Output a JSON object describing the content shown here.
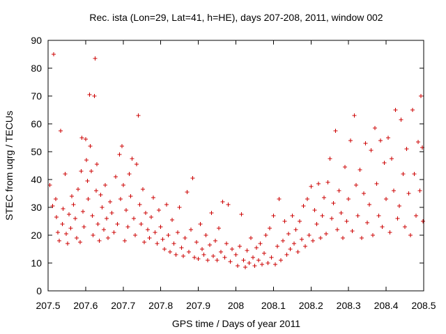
{
  "chart_data": {
    "type": "scatter",
    "title": "Rec. ista (Lon=29, Lat=41, h=HE), days 207-208, 2011, window 002",
    "xlabel": "GPS time / Days of year 2011",
    "ylabel": "STEC from uqrg / TECUs",
    "xlim": [
      207.5,
      208.5
    ],
    "ylim": [
      0,
      90
    ],
    "x_ticks": [
      "207.5",
      "207.6",
      "207.7",
      "207.8",
      "207.9",
      "208",
      "208.1",
      "208.2",
      "208.3",
      "208.4",
      "208.5"
    ],
    "y_ticks": [
      "0",
      "10",
      "20",
      "30",
      "40",
      "50",
      "60",
      "70",
      "80",
      "90"
    ],
    "grid": false,
    "marker": "plus",
    "color": "#cc0000",
    "series": [
      {
        "values": [
          [
            207.505,
            38.0
          ],
          [
            207.512,
            30.5
          ],
          [
            207.515,
            85.0
          ],
          [
            207.52,
            33.0
          ],
          [
            207.522,
            26.5
          ],
          [
            207.526,
            21.0
          ],
          [
            207.53,
            18.0
          ],
          [
            207.533,
            57.5
          ],
          [
            207.538,
            24.0
          ],
          [
            207.54,
            29.5
          ],
          [
            207.545,
            42.0
          ],
          [
            207.548,
            20.5
          ],
          [
            207.552,
            17.0
          ],
          [
            207.556,
            27.5
          ],
          [
            207.56,
            22.5
          ],
          [
            207.563,
            34.0
          ],
          [
            207.568,
            31.0
          ],
          [
            207.572,
            26.0
          ],
          [
            207.576,
            19.0
          ],
          [
            207.58,
            36.5
          ],
          [
            207.585,
            17.5
          ],
          [
            207.588,
            43.0
          ],
          [
            207.59,
            55.0
          ],
          [
            207.593,
            28.5
          ],
          [
            207.596,
            23.0
          ],
          [
            207.6,
            54.5
          ],
          [
            207.602,
            47.0
          ],
          [
            207.605,
            39.5
          ],
          [
            207.607,
            33.0
          ],
          [
            207.61,
            70.5
          ],
          [
            207.612,
            52.0
          ],
          [
            207.615,
            43.0
          ],
          [
            207.618,
            27.0
          ],
          [
            207.62,
            20.0
          ],
          [
            207.623,
            70.0
          ],
          [
            207.625,
            83.5
          ],
          [
            207.628,
            36.0
          ],
          [
            207.63,
            45.5
          ],
          [
            207.633,
            24.0
          ],
          [
            207.636,
            18.0
          ],
          [
            207.64,
            34.5
          ],
          [
            207.644,
            30.0
          ],
          [
            207.648,
            22.0
          ],
          [
            207.652,
            38.0
          ],
          [
            207.656,
            26.0
          ],
          [
            207.66,
            19.0
          ],
          [
            207.665,
            32.0
          ],
          [
            207.67,
            28.0
          ],
          [
            207.675,
            21.0
          ],
          [
            207.68,
            41.0
          ],
          [
            207.685,
            24.0
          ],
          [
            207.69,
            49.0
          ],
          [
            207.693,
            33.0
          ],
          [
            207.697,
            52.0
          ],
          [
            207.7,
            38.0
          ],
          [
            207.704,
            18.0
          ],
          [
            207.708,
            29.0
          ],
          [
            207.712,
            23.0
          ],
          [
            207.716,
            42.0
          ],
          [
            207.72,
            34.0
          ],
          [
            207.724,
            47.5
          ],
          [
            207.728,
            26.0
          ],
          [
            207.732,
            20.0
          ],
          [
            207.736,
            45.5
          ],
          [
            207.74,
            63.0
          ],
          [
            207.744,
            31.0
          ],
          [
            207.748,
            24.0
          ],
          [
            207.752,
            36.5
          ],
          [
            207.756,
            17.5
          ],
          [
            207.76,
            28.0
          ],
          [
            207.765,
            22.0
          ],
          [
            207.77,
            19.0
          ],
          [
            207.775,
            26.5
          ],
          [
            207.78,
            33.5
          ],
          [
            207.785,
            21.0
          ],
          [
            207.79,
            17.0
          ],
          [
            207.795,
            29.0
          ],
          [
            207.8,
            23.0
          ],
          [
            207.805,
            18.5
          ],
          [
            207.81,
            15.0
          ],
          [
            207.815,
            31.0
          ],
          [
            207.82,
            20.0
          ],
          [
            207.825,
            14.0
          ],
          [
            207.83,
            25.5
          ],
          [
            207.835,
            17.0
          ],
          [
            207.84,
            13.0
          ],
          [
            207.845,
            21.0
          ],
          [
            207.85,
            30.0
          ],
          [
            207.855,
            15.5
          ],
          [
            207.86,
            12.5
          ],
          [
            207.865,
            19.0
          ],
          [
            207.87,
            35.5
          ],
          [
            207.875,
            14.0
          ],
          [
            207.88,
            22.0
          ],
          [
            207.885,
            40.5
          ],
          [
            207.89,
            12.0
          ],
          [
            207.895,
            17.5
          ],
          [
            207.9,
            11.5
          ],
          [
            207.905,
            24.0
          ],
          [
            207.91,
            15.0
          ],
          [
            207.915,
            13.0
          ],
          [
            207.92,
            20.0
          ],
          [
            207.925,
            11.0
          ],
          [
            207.93,
            16.5
          ],
          [
            207.935,
            28.0
          ],
          [
            207.94,
            12.5
          ],
          [
            207.945,
            18.0
          ],
          [
            207.95,
            11.0
          ],
          [
            207.955,
            22.5
          ],
          [
            207.96,
            14.0
          ],
          [
            207.965,
            32.0
          ],
          [
            207.97,
            12.0
          ],
          [
            207.975,
            17.0
          ],
          [
            207.98,
            31.0
          ],
          [
            207.985,
            10.5
          ],
          [
            207.99,
            15.0
          ],
          [
            208.0,
            13.0
          ],
          [
            208.005,
            9.0
          ],
          [
            208.01,
            16.0
          ],
          [
            208.015,
            27.5
          ],
          [
            208.02,
            11.0
          ],
          [
            208.025,
            8.5
          ],
          [
            208.03,
            14.5
          ],
          [
            208.035,
            10.0
          ],
          [
            208.04,
            19.0
          ],
          [
            208.045,
            12.0
          ],
          [
            208.05,
            9.0
          ],
          [
            208.055,
            15.5
          ],
          [
            208.06,
            11.0
          ],
          [
            208.065,
            17.0
          ],
          [
            208.07,
            9.5
          ],
          [
            208.075,
            13.5
          ],
          [
            208.08,
            20.0
          ],
          [
            208.085,
            10.0
          ],
          [
            208.09,
            22.5
          ],
          [
            208.095,
            12.0
          ],
          [
            208.1,
            27.0
          ],
          [
            208.105,
            9.5
          ],
          [
            208.11,
            16.0
          ],
          [
            208.115,
            33.0
          ],
          [
            208.12,
            11.0
          ],
          [
            208.125,
            18.0
          ],
          [
            208.13,
            25.0
          ],
          [
            208.135,
            13.0
          ],
          [
            208.14,
            20.5
          ],
          [
            208.145,
            15.0
          ],
          [
            208.15,
            27.0
          ],
          [
            208.155,
            17.0
          ],
          [
            208.16,
            22.0
          ],
          [
            208.165,
            14.0
          ],
          [
            208.17,
            25.0
          ],
          [
            208.175,
            18.5
          ],
          [
            208.18,
            30.5
          ],
          [
            208.185,
            16.0
          ],
          [
            208.19,
            33.0
          ],
          [
            208.195,
            20.0
          ],
          [
            208.2,
            37.5
          ],
          [
            208.205,
            18.0
          ],
          [
            208.21,
            29.0
          ],
          [
            208.215,
            24.0
          ],
          [
            208.22,
            38.5
          ],
          [
            208.225,
            19.0
          ],
          [
            208.23,
            27.0
          ],
          [
            208.235,
            33.5
          ],
          [
            208.24,
            20.5
          ],
          [
            208.245,
            39.0
          ],
          [
            208.25,
            47.5
          ],
          [
            208.255,
            26.0
          ],
          [
            208.26,
            31.5
          ],
          [
            208.265,
            57.5
          ],
          [
            208.27,
            22.0
          ],
          [
            208.275,
            36.0
          ],
          [
            208.28,
            28.0
          ],
          [
            208.285,
            19.0
          ],
          [
            208.29,
            44.5
          ],
          [
            208.295,
            25.0
          ],
          [
            208.3,
            33.0
          ],
          [
            208.305,
            54.0
          ],
          [
            208.31,
            21.5
          ],
          [
            208.315,
            63.0
          ],
          [
            208.32,
            38.0
          ],
          [
            208.325,
            27.0
          ],
          [
            208.33,
            43.5
          ],
          [
            208.335,
            19.0
          ],
          [
            208.34,
            35.0
          ],
          [
            208.345,
            53.0
          ],
          [
            208.35,
            24.5
          ],
          [
            208.355,
            31.0
          ],
          [
            208.36,
            50.5
          ],
          [
            208.365,
            20.0
          ],
          [
            208.37,
            58.5
          ],
          [
            208.375,
            38.5
          ],
          [
            208.38,
            27.0
          ],
          [
            208.385,
            54.0
          ],
          [
            208.39,
            23.0
          ],
          [
            208.395,
            46.0
          ],
          [
            208.4,
            33.0
          ],
          [
            208.405,
            55.0
          ],
          [
            208.41,
            21.0
          ],
          [
            208.415,
            47.5
          ],
          [
            208.42,
            36.0
          ],
          [
            208.425,
            65.0
          ],
          [
            208.43,
            26.0
          ],
          [
            208.435,
            30.5
          ],
          [
            208.44,
            61.5
          ],
          [
            208.445,
            42.0
          ],
          [
            208.45,
            23.0
          ],
          [
            208.455,
            51.0
          ],
          [
            208.46,
            35.0
          ],
          [
            208.465,
            20.0
          ],
          [
            208.47,
            65.0
          ],
          [
            208.475,
            42.0
          ],
          [
            208.48,
            27.0
          ],
          [
            208.485,
            53.5
          ],
          [
            208.49,
            36.0
          ],
          [
            208.493,
            70.0
          ],
          [
            208.496,
            51.5
          ],
          [
            208.498,
            25.0
          ]
        ]
      }
    ]
  }
}
